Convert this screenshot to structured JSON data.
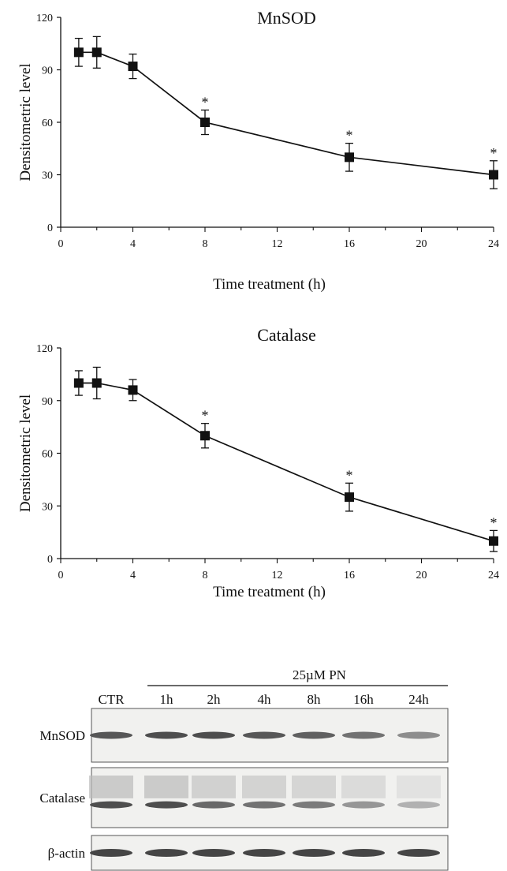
{
  "chart_data": [
    {
      "type": "line",
      "title": "MnSOD",
      "xlabel": "Time treatment (h)",
      "ylabel": "Densitometric level",
      "xlim": [
        0,
        24
      ],
      "ylim": [
        0,
        120
      ],
      "xticks": [
        0,
        4,
        8,
        12,
        16,
        20,
        24
      ],
      "yticks": [
        0,
        30,
        60,
        90,
        120
      ],
      "grid": false,
      "legend": "none",
      "series": [
        {
          "x": [
            1,
            2,
            4,
            8,
            16,
            24
          ],
          "y": [
            100,
            100,
            92,
            60,
            40,
            30
          ],
          "error": [
            8,
            9,
            7,
            7,
            8,
            8
          ],
          "significant": [
            false,
            false,
            false,
            true,
            true,
            true
          ]
        }
      ],
      "annotation_symbol": "*"
    },
    {
      "type": "line",
      "title": "Catalase",
      "xlabel": "Time treatment (h)",
      "ylabel": "Densitometric level",
      "xlim": [
        0,
        24
      ],
      "ylim": [
        0,
        120
      ],
      "xticks": [
        0,
        4,
        8,
        12,
        16,
        20,
        24
      ],
      "yticks": [
        0,
        30,
        60,
        90,
        120
      ],
      "grid": false,
      "legend": "none",
      "series": [
        {
          "x": [
            1,
            2,
            4,
            8,
            16,
            24
          ],
          "y": [
            100,
            100,
            96,
            70,
            35,
            10
          ],
          "error": [
            7,
            9,
            6,
            7,
            8,
            6
          ],
          "significant": [
            false,
            false,
            false,
            true,
            true,
            true
          ]
        }
      ],
      "annotation_symbol": "*"
    }
  ],
  "blot": {
    "treatment_label": "25µM PN",
    "lanes": [
      "CTR",
      "1h",
      "2h",
      "4h",
      "8h",
      "16h",
      "24h"
    ],
    "rows": [
      {
        "label": "MnSOD",
        "intensity": [
          0.85,
          0.9,
          0.9,
          0.85,
          0.8,
          0.7,
          0.55
        ]
      },
      {
        "label": "Catalase",
        "intensity": [
          0.9,
          0.9,
          0.75,
          0.7,
          0.65,
          0.5,
          0.35
        ]
      },
      {
        "label": "β-actin",
        "intensity": [
          0.95,
          0.95,
          0.95,
          0.95,
          0.95,
          0.95,
          0.95
        ]
      }
    ]
  }
}
